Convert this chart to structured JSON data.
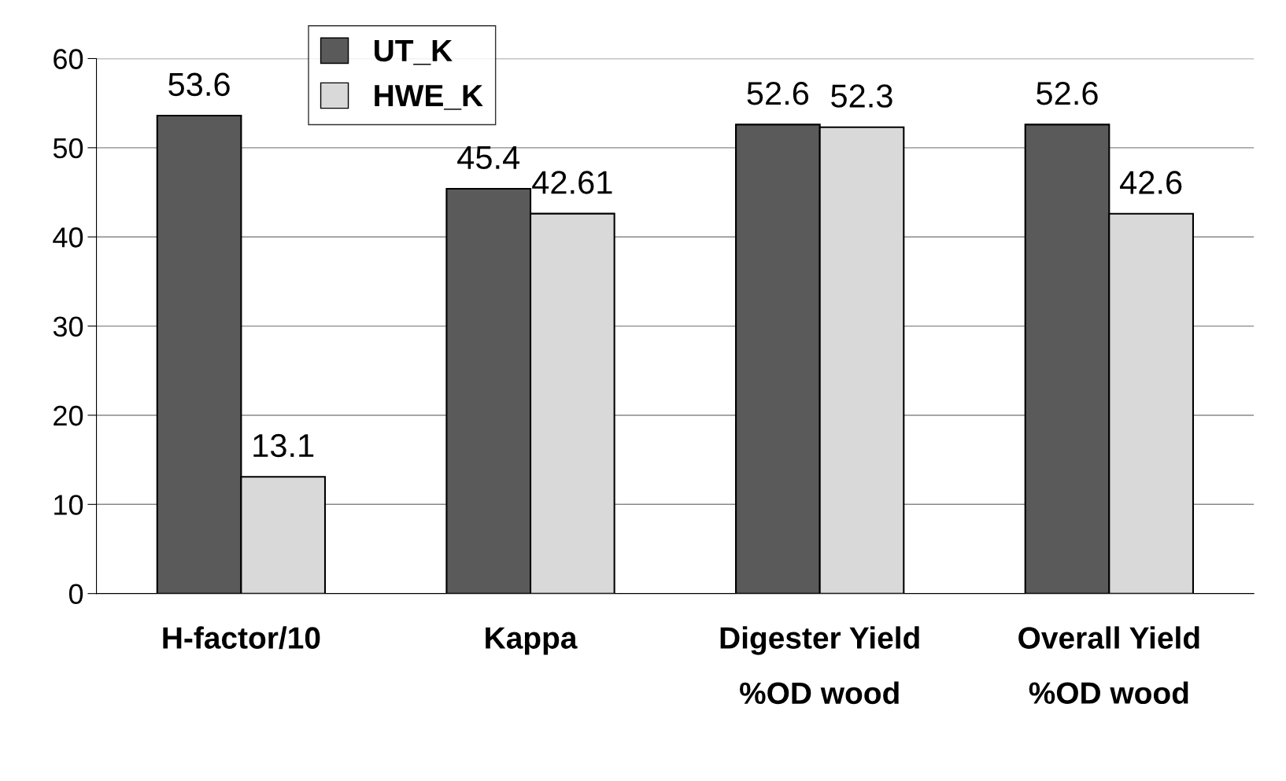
{
  "chart_data": {
    "type": "bar",
    "categories": [
      "H-factor/10",
      "Kappa",
      "Digester Yield\n%OD wood",
      "Overall Yield\n%OD wood"
    ],
    "series": [
      {
        "name": "UT_K",
        "color": "#5a5a5a",
        "values": [
          53.6,
          45.4,
          52.6,
          52.6
        ]
      },
      {
        "name": "HWE_K",
        "color": "#d9d9d9",
        "values": [
          13.1,
          42.61,
          52.3,
          42.6
        ]
      }
    ],
    "ylim": [
      0,
      60
    ],
    "yticks": [
      0,
      10,
      20,
      30,
      40,
      50,
      60
    ],
    "grid": "y",
    "legend": "top left",
    "data_labels": true
  }
}
